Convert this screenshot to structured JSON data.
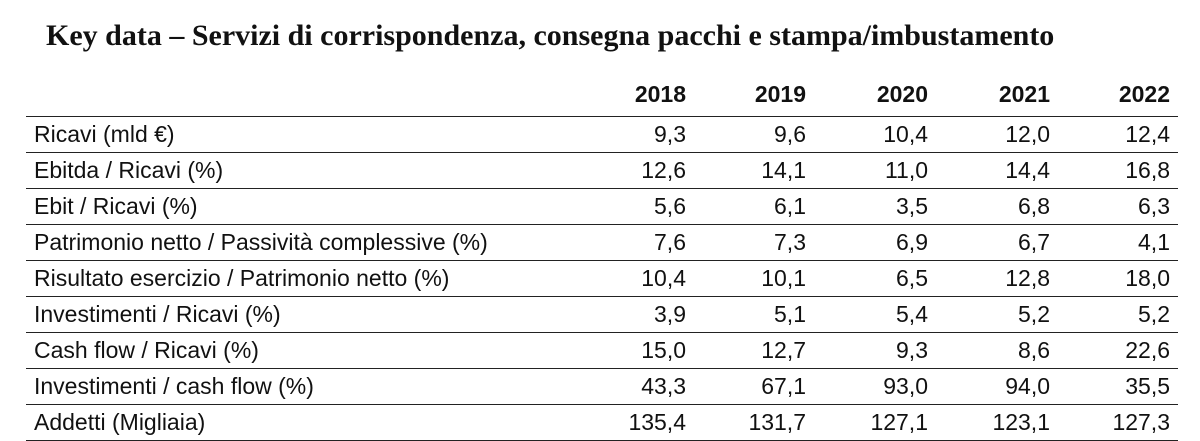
{
  "title": "Key data – Servizi di corrispondenza, consegna pacchi e stampa/imbustamento",
  "table": {
    "years": [
      "2018",
      "2019",
      "2020",
      "2021",
      "2022"
    ],
    "rows": [
      {
        "label": "Ricavi (mld €)",
        "values": [
          "9,3",
          "9,6",
          "10,4",
          "12,0",
          "12,4"
        ]
      },
      {
        "label": "Ebitda / Ricavi (%)",
        "values": [
          "12,6",
          "14,1",
          "11,0",
          "14,4",
          "16,8"
        ]
      },
      {
        "label": "Ebit / Ricavi (%)",
        "values": [
          "5,6",
          "6,1",
          "3,5",
          "6,8",
          "6,3"
        ]
      },
      {
        "label": "Patrimonio netto / Passività complessive (%)",
        "values": [
          "7,6",
          "7,3",
          "6,9",
          "6,7",
          "4,1"
        ]
      },
      {
        "label": "Risultato esercizio / Patrimonio netto (%)",
        "values": [
          "10,4",
          "10,1",
          "6,5",
          "12,8",
          "18,0"
        ]
      },
      {
        "label": "Investimenti / Ricavi (%)",
        "values": [
          "3,9",
          "5,1",
          "5,4",
          "5,2",
          "5,2"
        ]
      },
      {
        "label": "Cash flow / Ricavi (%)",
        "values": [
          "15,0",
          "12,7",
          "9,3",
          "8,6",
          "22,6"
        ]
      },
      {
        "label": "Investimenti / cash flow (%)",
        "values": [
          "43,3",
          "67,1",
          "93,0",
          "94,0",
          "35,5"
        ]
      },
      {
        "label": "Addetti (Migliaia)",
        "values": [
          "135,4",
          "131,7",
          "127,1",
          "123,1",
          "127,3"
        ]
      }
    ]
  }
}
